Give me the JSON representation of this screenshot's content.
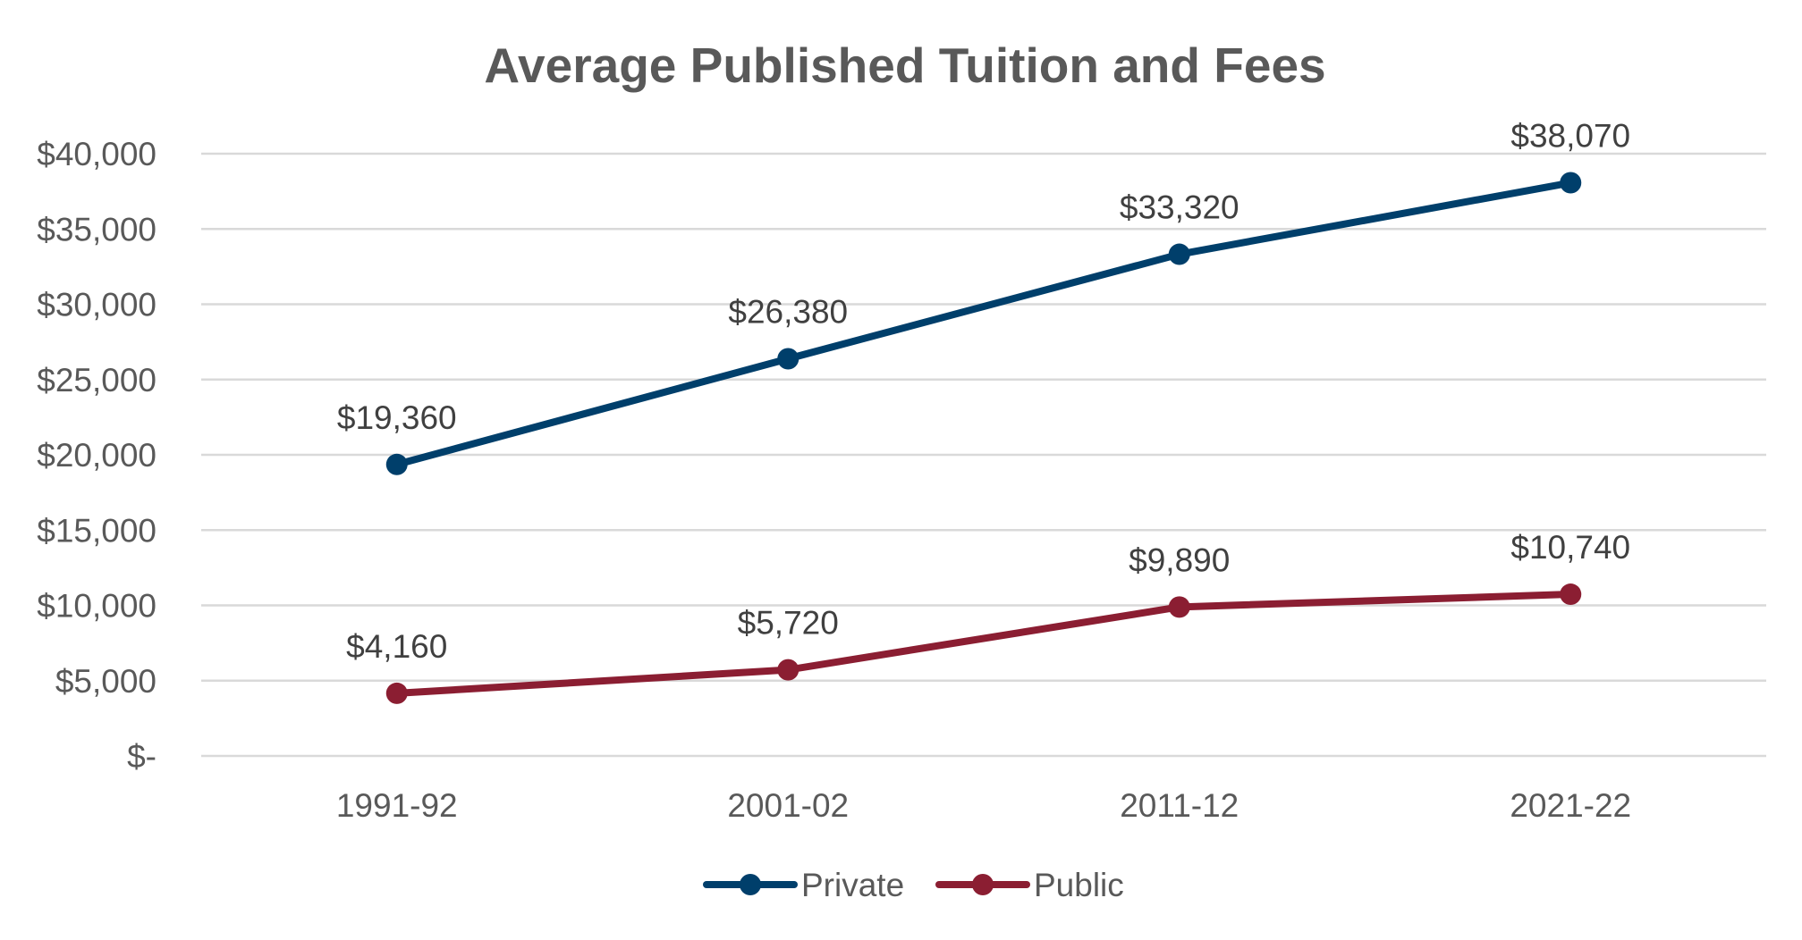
{
  "chart_data": {
    "type": "line",
    "title": "Average Published Tuition and Fees",
    "categories": [
      "1991-92",
      "2001-02",
      "2011-12",
      "2021-22"
    ],
    "series": [
      {
        "name": "Private",
        "values": [
          19360,
          26380,
          33320,
          38070
        ],
        "data_labels": [
          "$19,360",
          "$26,380",
          "$33,320",
          "$38,070"
        ],
        "color": "#003f6b"
      },
      {
        "name": "Public",
        "values": [
          4160,
          5720,
          9890,
          10740
        ],
        "data_labels": [
          "$4,160",
          "$5,720",
          "$9,890",
          "$10,740"
        ],
        "color": "#8b1e32"
      }
    ],
    "ylim": [
      0,
      40000
    ],
    "y_ticks": [
      0,
      5000,
      10000,
      15000,
      20000,
      25000,
      30000,
      35000,
      40000
    ],
    "y_tick_labels": [
      "$-",
      "$5,000",
      "$10,000",
      "$15,000",
      "$20,000",
      "$25,000",
      "$30,000",
      "$35,000",
      "$40,000"
    ],
    "xlabel": "",
    "ylabel": "",
    "grid": true,
    "legend_position": "bottom"
  }
}
